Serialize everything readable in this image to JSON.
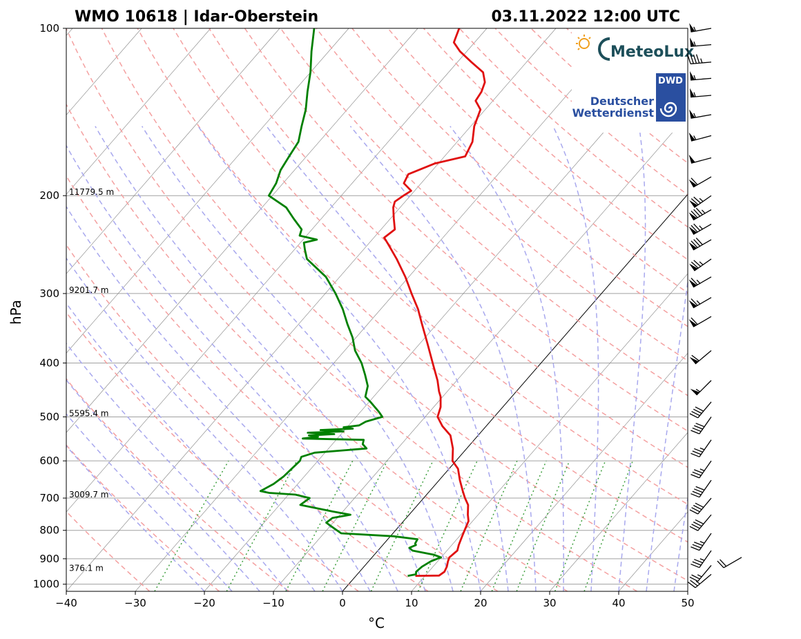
{
  "header": {
    "station_title": "WMO 10618 | Idar-Oberstein",
    "datetime": "03.11.2022 12:00 UTC"
  },
  "logos": {
    "meteolux": "MeteoLux",
    "dwd_box": "DWD",
    "dwd_line1": "Deutscher",
    "dwd_line2": "Wetterdienst"
  },
  "colors": {
    "temperature": "#e01010",
    "dewpoint": "#008000",
    "dry_adiabat": "#f4a0a0",
    "moist_adiabat": "#a8a8ee",
    "mixing_ratio": "#40a040",
    "isotherm": "#808080",
    "isobar": "#a0a0a0",
    "zero_isotherm": "#000000"
  },
  "chart_data": {
    "type": "line",
    "subtype": "skew-t log-p",
    "title": "WMO 10618 | Idar-Oberstein",
    "xlabel": "°C",
    "ylabel": "hPa",
    "xlim": [
      -40,
      50
    ],
    "ylim": [
      1030,
      100
    ],
    "y_scale": "log",
    "x_ticks": [
      -40,
      -30,
      -20,
      -10,
      0,
      10,
      20,
      30,
      40,
      50
    ],
    "x_tick_labels": [
      "−40",
      "−30",
      "−20",
      "−10",
      "0",
      "10",
      "20",
      "30",
      "40",
      "50"
    ],
    "y_ticks": [
      100,
      200,
      300,
      400,
      500,
      600,
      700,
      800,
      900,
      1000
    ],
    "y_tick_labels": [
      "100",
      "200",
      "300",
      "400",
      "500",
      "600",
      "700",
      "800",
      "900",
      "1000"
    ],
    "height_labels": [
      {
        "p": 200,
        "label": "11779.5 m"
      },
      {
        "p": 300,
        "label": "9201.7 m"
      },
      {
        "p": 500,
        "label": "5595.4 m"
      },
      {
        "p": 700,
        "label": "3009.7 m"
      },
      {
        "p": 950,
        "label": "376.1 m"
      }
    ],
    "series": [
      {
        "name": "Temperature",
        "color": "#e01010",
        "points": [
          [
            966,
            8.6
          ],
          [
            965,
            12.0
          ],
          [
            950,
            12.3
          ],
          [
            930,
            12.0
          ],
          [
            910,
            11.5
          ],
          [
            895,
            11.2
          ],
          [
            870,
            11.5
          ],
          [
            850,
            11.0
          ],
          [
            820,
            10.4
          ],
          [
            800,
            10.0
          ],
          [
            770,
            9.4
          ],
          [
            750,
            8.5
          ],
          [
            720,
            7.3
          ],
          [
            700,
            6.0
          ],
          [
            680,
            4.8
          ],
          [
            650,
            3.0
          ],
          [
            620,
            1.3
          ],
          [
            600,
            -0.5
          ],
          [
            570,
            -2.0
          ],
          [
            540,
            -4.0
          ],
          [
            520,
            -6.3
          ],
          [
            500,
            -8.2
          ],
          [
            480,
            -9.0
          ],
          [
            460,
            -10.3
          ],
          [
            450,
            -11.2
          ],
          [
            430,
            -12.8
          ],
          [
            400,
            -15.7
          ],
          [
            370,
            -18.8
          ],
          [
            340,
            -22.2
          ],
          [
            320,
            -24.6
          ],
          [
            300,
            -27.5
          ],
          [
            280,
            -30.5
          ],
          [
            260,
            -34.0
          ],
          [
            245,
            -37.0
          ],
          [
            238,
            -38.5
          ],
          [
            230,
            -38.0
          ],
          [
            220,
            -39.5
          ],
          [
            210,
            -41.0
          ],
          [
            205,
            -41.5
          ],
          [
            200,
            -41.0
          ],
          [
            196,
            -40.5
          ],
          [
            190,
            -42.5
          ],
          [
            183,
            -43.0
          ],
          [
            175,
            -40.5
          ],
          [
            170,
            -37.0
          ],
          [
            160,
            -37.8
          ],
          [
            150,
            -39.5
          ],
          [
            140,
            -40.7
          ],
          [
            135,
            -42.5
          ],
          [
            130,
            -42.8
          ],
          [
            125,
            -43.5
          ],
          [
            120,
            -45.0
          ],
          [
            115,
            -48.0
          ],
          [
            110,
            -51.0
          ],
          [
            106,
            -53.0
          ],
          [
            103,
            -53.5
          ],
          [
            100,
            -54.0
          ]
        ]
      },
      {
        "name": "Dewpoint",
        "color": "#008000",
        "points": [
          [
            966,
            7.5
          ],
          [
            960,
            8.5
          ],
          [
            950,
            8.2
          ],
          [
            940,
            8.3
          ],
          [
            930,
            8.4
          ],
          [
            910,
            9.0
          ],
          [
            900,
            9.6
          ],
          [
            895,
            10.0
          ],
          [
            885,
            8.6
          ],
          [
            870,
            5.0
          ],
          [
            860,
            4.2
          ],
          [
            850,
            4.8
          ],
          [
            845,
            4.5
          ],
          [
            830,
            4.3
          ],
          [
            820,
            0.5
          ],
          [
            810,
            -7.5
          ],
          [
            790,
            -9.5
          ],
          [
            775,
            -11.0
          ],
          [
            760,
            -10.7
          ],
          [
            750,
            -8.5
          ],
          [
            740,
            -11.5
          ],
          [
            720,
            -17.0
          ],
          [
            700,
            -16.5
          ],
          [
            690,
            -19.0
          ],
          [
            685,
            -23.0
          ],
          [
            680,
            -24.5
          ],
          [
            660,
            -23.5
          ],
          [
            640,
            -23.0
          ],
          [
            620,
            -22.8
          ],
          [
            600,
            -22.6
          ],
          [
            590,
            -22.9
          ],
          [
            580,
            -21.5
          ],
          [
            570,
            -14.5
          ],
          [
            560,
            -15.6
          ],
          [
            550,
            -16.0
          ],
          [
            547,
            -25.0
          ],
          [
            543,
            -23.0
          ],
          [
            540,
            -24.5
          ],
          [
            537,
            -21.0
          ],
          [
            534,
            -25.0
          ],
          [
            531,
            -20.0
          ],
          [
            528,
            -23.5
          ],
          [
            525,
            -19.0
          ],
          [
            522,
            -20.5
          ],
          [
            518,
            -18.5
          ],
          [
            510,
            -18.0
          ],
          [
            500,
            -16.2
          ],
          [
            490,
            -17.3
          ],
          [
            470,
            -19.8
          ],
          [
            460,
            -21.2
          ],
          [
            440,
            -22.2
          ],
          [
            420,
            -24.0
          ],
          [
            400,
            -26.0
          ],
          [
            380,
            -28.5
          ],
          [
            360,
            -30.5
          ],
          [
            340,
            -33.0
          ],
          [
            320,
            -35.5
          ],
          [
            300,
            -38.5
          ],
          [
            280,
            -42.0
          ],
          [
            260,
            -47.0
          ],
          [
            250,
            -48.5
          ],
          [
            243,
            -49.5
          ],
          [
            240,
            -48.0
          ],
          [
            236,
            -51.0
          ],
          [
            230,
            -51.5
          ],
          [
            220,
            -54.0
          ],
          [
            210,
            -56.5
          ],
          [
            200,
            -60.5
          ],
          [
            190,
            -61.0
          ],
          [
            180,
            -62.0
          ],
          [
            170,
            -62.5
          ],
          [
            160,
            -63.0
          ],
          [
            150,
            -64.5
          ],
          [
            140,
            -66.0
          ],
          [
            130,
            -68.0
          ],
          [
            120,
            -70.0
          ],
          [
            110,
            -72.5
          ],
          [
            100,
            -75.0
          ]
        ]
      }
    ],
    "wind_barbs": [
      {
        "p": 100,
        "dir": 260,
        "kt": 55
      },
      {
        "p": 107,
        "dir": 265,
        "kt": 55
      },
      {
        "p": 115,
        "dir": 265,
        "kt": 45
      },
      {
        "p": 123,
        "dir": 265,
        "kt": 55
      },
      {
        "p": 132,
        "dir": 265,
        "kt": 55
      },
      {
        "p": 143,
        "dir": 260,
        "kt": 55
      },
      {
        "p": 156,
        "dir": 255,
        "kt": 55
      },
      {
        "p": 171,
        "dir": 255,
        "kt": 50
      },
      {
        "p": 185,
        "dir": 240,
        "kt": 60
      },
      {
        "p": 200,
        "dir": 235,
        "kt": 75
      },
      {
        "p": 212,
        "dir": 240,
        "kt": 85
      },
      {
        "p": 225,
        "dir": 240,
        "kt": 75
      },
      {
        "p": 240,
        "dir": 240,
        "kt": 80
      },
      {
        "p": 260,
        "dir": 235,
        "kt": 75
      },
      {
        "p": 280,
        "dir": 240,
        "kt": 65
      },
      {
        "p": 305,
        "dir": 240,
        "kt": 65
      },
      {
        "p": 330,
        "dir": 240,
        "kt": 60
      },
      {
        "p": 380,
        "dir": 230,
        "kt": 60
      },
      {
        "p": 430,
        "dir": 225,
        "kt": 55
      },
      {
        "p": 470,
        "dir": 220,
        "kt": 40
      },
      {
        "p": 500,
        "dir": 215,
        "kt": 40
      },
      {
        "p": 550,
        "dir": 215,
        "kt": 35
      },
      {
        "p": 600,
        "dir": 215,
        "kt": 35
      },
      {
        "p": 650,
        "dir": 215,
        "kt": 40
      },
      {
        "p": 700,
        "dir": 220,
        "kt": 40
      },
      {
        "p": 750,
        "dir": 220,
        "kt": 40
      },
      {
        "p": 810,
        "dir": 215,
        "kt": 35
      },
      {
        "p": 870,
        "dir": 215,
        "kt": 35
      },
      {
        "p": 925,
        "dir": 220,
        "kt": 25
      },
      {
        "p": 960,
        "dir": 230,
        "kt": 25
      },
      {
        "p": 975,
        "dir": 240,
        "kt": 20,
        "offset": true
      }
    ]
  }
}
